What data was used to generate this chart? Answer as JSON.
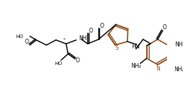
{
  "bg_color": "#ffffff",
  "line_color": "#000000",
  "bond_color": "#8B4513",
  "figsize": [
    2.63,
    1.33
  ],
  "dpi": 100,
  "xlim": [
    0,
    263
  ],
  "ylim": [
    0,
    133
  ]
}
